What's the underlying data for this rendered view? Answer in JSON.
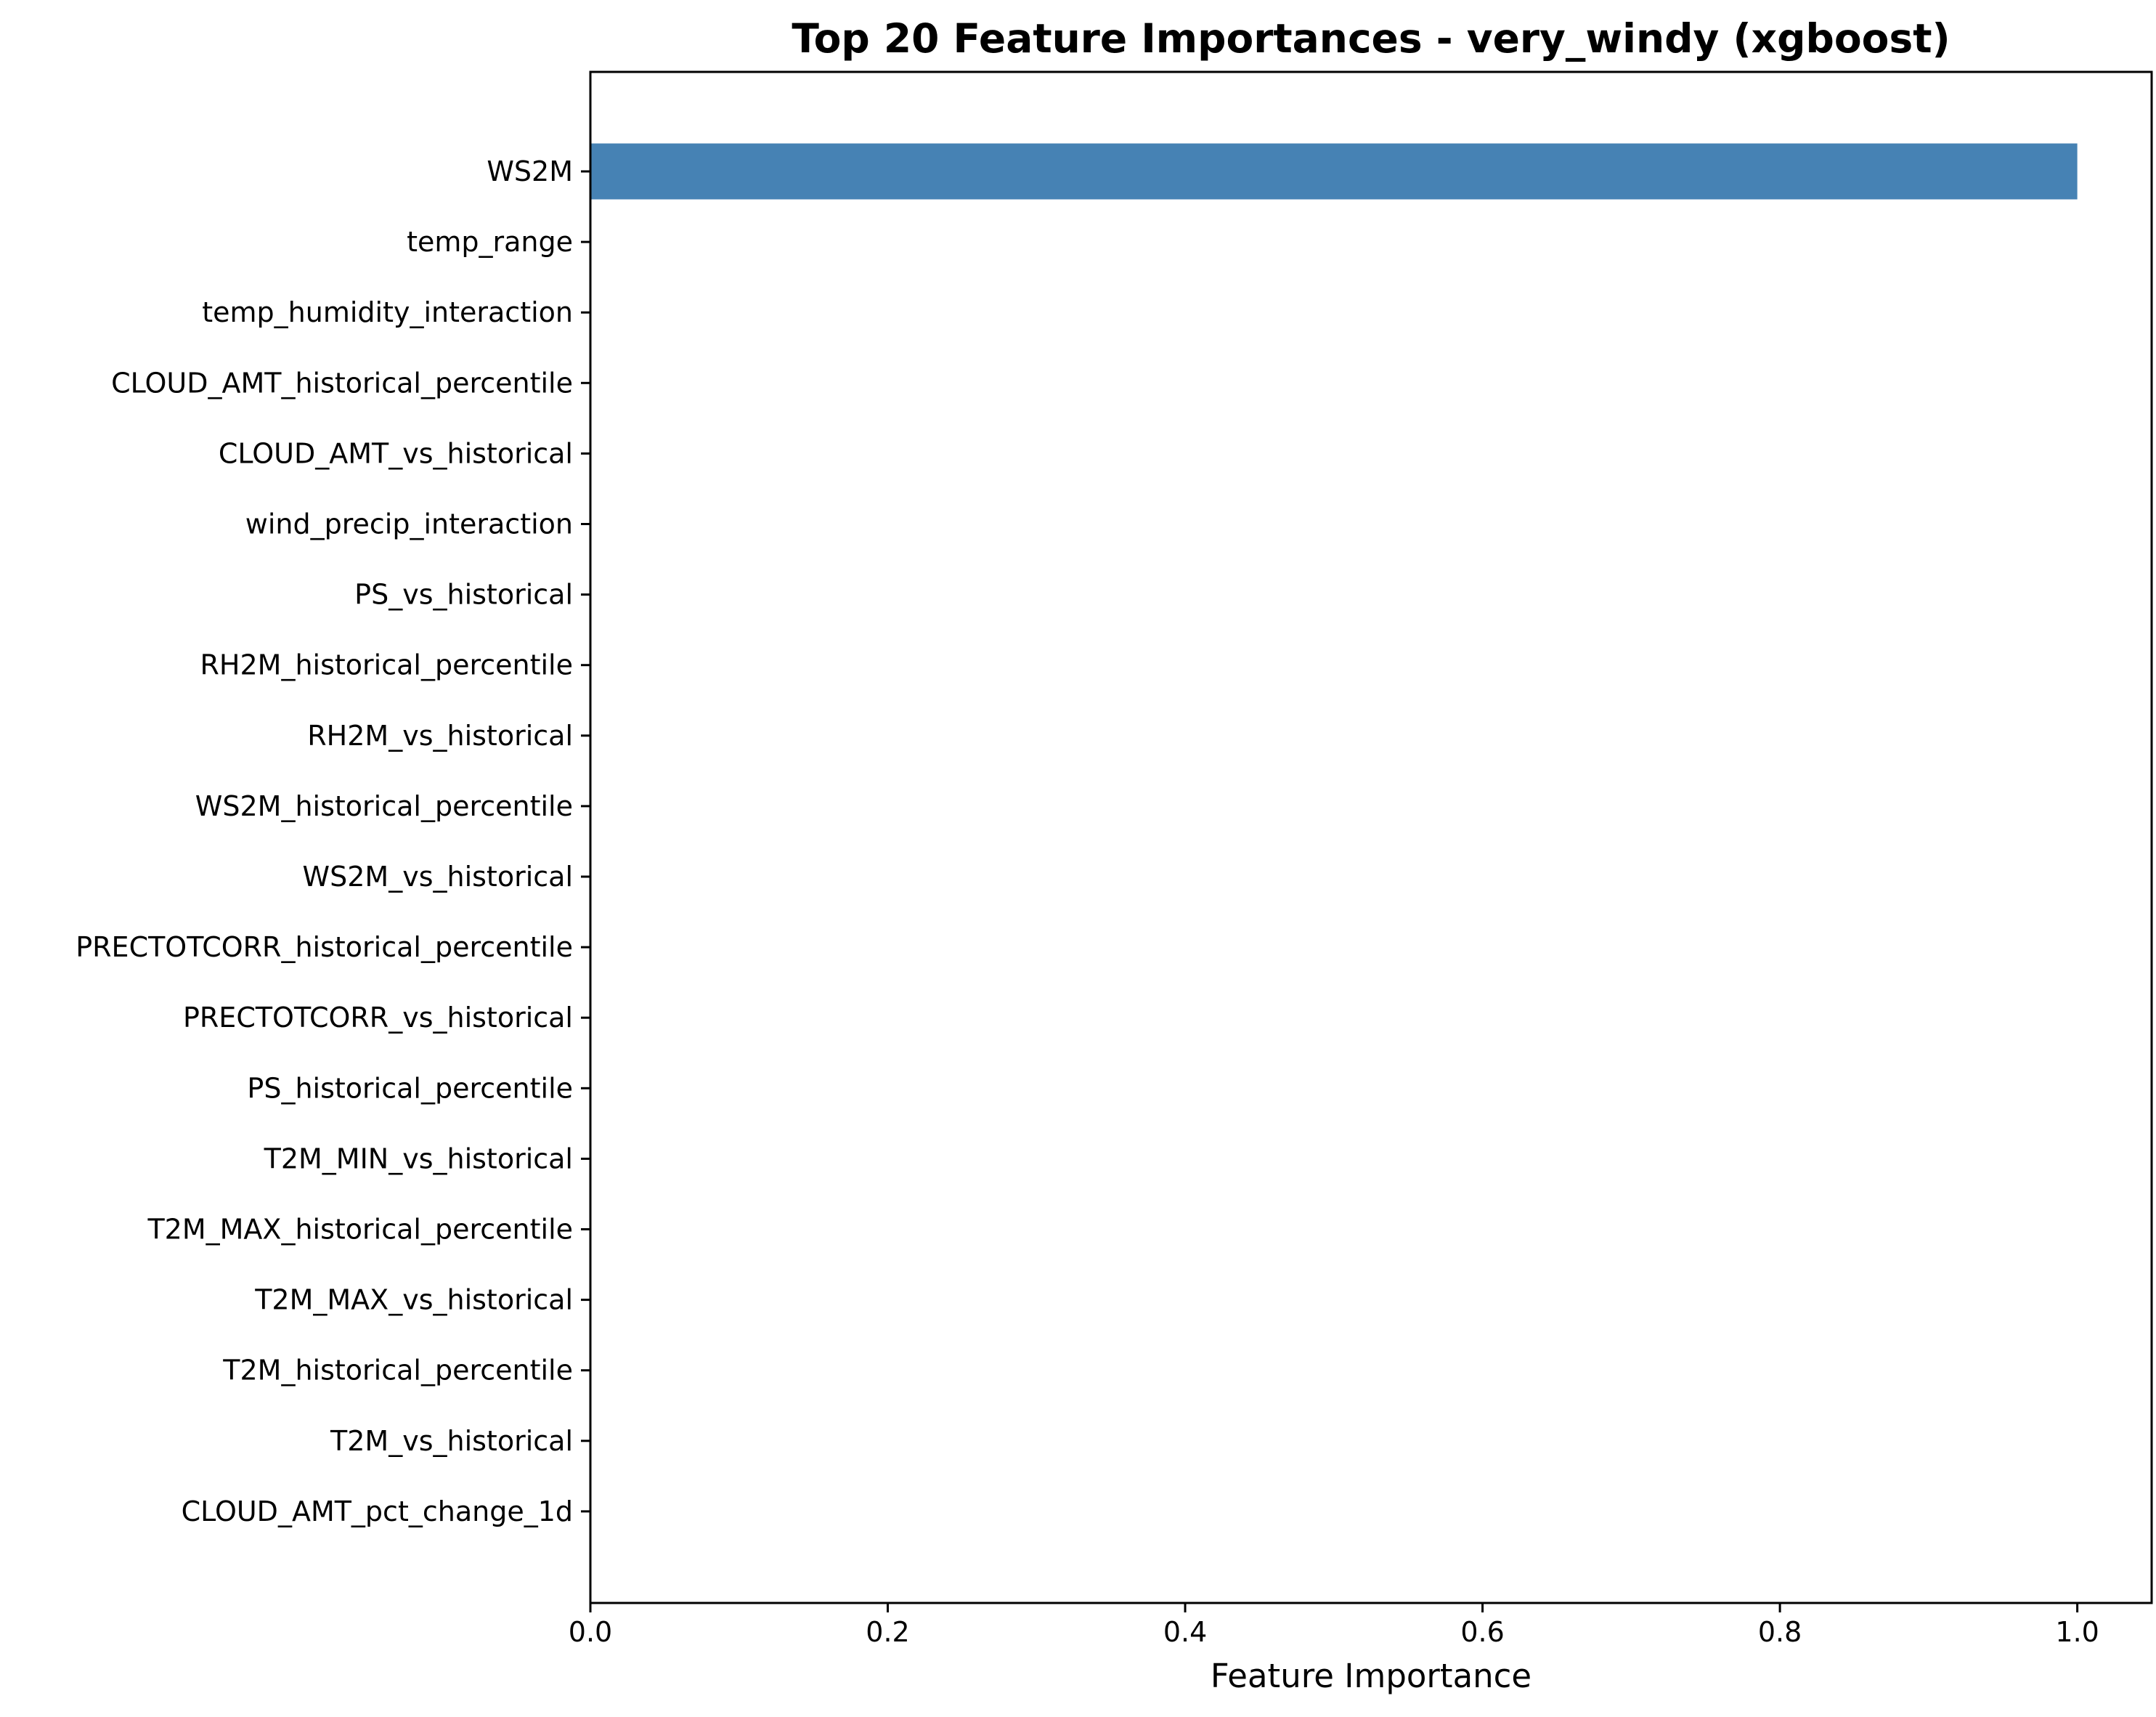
{
  "chart_data": {
    "type": "bar",
    "orientation": "horizontal",
    "title": "Top 20 Feature Importances - very_windy (xgboost)",
    "xlabel": "Feature Importance",
    "ylabel": "",
    "xlim": [
      0,
      1.05
    ],
    "xticks": [
      "0.0",
      "0.2",
      "0.4",
      "0.6",
      "0.8",
      "1.0"
    ],
    "bar_color": "#4682b4",
    "grid": false,
    "categories": [
      "WS2M",
      "temp_range",
      "temp_humidity_interaction",
      "CLOUD_AMT_historical_percentile",
      "CLOUD_AMT_vs_historical",
      "wind_precip_interaction",
      "PS_vs_historical",
      "RH2M_historical_percentile",
      "RH2M_vs_historical",
      "WS2M_historical_percentile",
      "WS2M_vs_historical",
      "PRECTOTCORR_historical_percentile",
      "PRECTOTCORR_vs_historical",
      "PS_historical_percentile",
      "T2M_MIN_vs_historical",
      "T2M_MAX_historical_percentile",
      "T2M_MAX_vs_historical",
      "T2M_historical_percentile",
      "T2M_vs_historical",
      "CLOUD_AMT_pct_change_1d"
    ],
    "values": [
      1.0,
      0,
      0,
      0,
      0,
      0,
      0,
      0,
      0,
      0,
      0,
      0,
      0,
      0,
      0,
      0,
      0,
      0,
      0,
      0
    ]
  }
}
